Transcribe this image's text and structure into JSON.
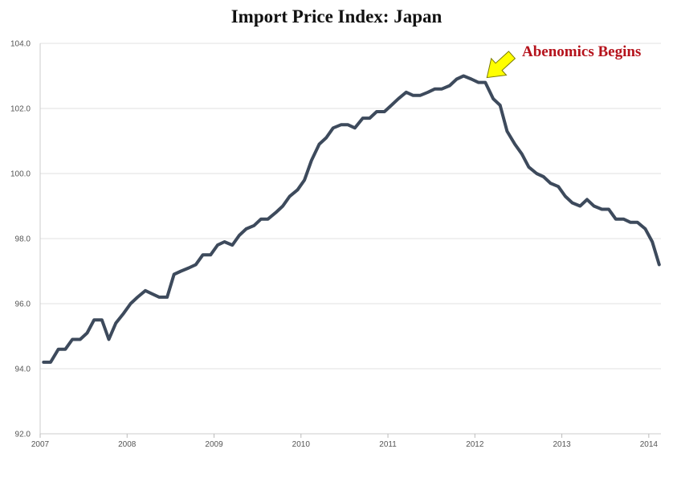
{
  "chart_data": {
    "type": "line",
    "title": "Import Price Index: Japan",
    "xlabel": "",
    "ylabel": "",
    "xlim": [
      2007.0,
      2014.14
    ],
    "ylim": [
      92.0,
      104.0
    ],
    "y_ticks": [
      92.0,
      94.0,
      96.0,
      98.0,
      100.0,
      102.0,
      104.0
    ],
    "y_tick_labels": [
      "92.0",
      "94.0",
      "96.0",
      "98.0",
      "100.0",
      "102.0",
      "104.0"
    ],
    "x_ticks": [
      2007,
      2008,
      2009,
      2010,
      2011,
      2012,
      2013,
      2014
    ],
    "x_tick_labels": [
      "2007",
      "2008",
      "2009",
      "2010",
      "2011",
      "2012",
      "2013",
      "2014"
    ],
    "grid": "horizontal",
    "line_color": "#3d4a5c",
    "series": [
      {
        "x": [
          2007.04,
          2007.12,
          2007.21,
          2007.29,
          2007.37,
          2007.46,
          2007.54,
          2007.62,
          2007.71,
          2007.79,
          2007.87,
          2007.96,
          2008.04,
          2008.12,
          2008.21,
          2008.29,
          2008.37,
          2008.46,
          2008.54,
          2008.62,
          2008.71,
          2008.79,
          2008.87,
          2008.96,
          2009.04,
          2009.12,
          2009.21,
          2009.29,
          2009.37,
          2009.46,
          2009.54,
          2009.62,
          2009.71,
          2009.79,
          2009.87,
          2009.96,
          2010.04,
          2010.12,
          2010.21,
          2010.29,
          2010.37,
          2010.46,
          2010.54,
          2010.62,
          2010.71,
          2010.79,
          2010.87,
          2010.96,
          2011.04,
          2011.12,
          2011.21,
          2011.29,
          2011.37,
          2011.46,
          2011.54,
          2011.62,
          2011.71,
          2011.79,
          2011.87,
          2011.96,
          2012.04,
          2012.12,
          2012.21,
          2012.29,
          2012.37,
          2012.46,
          2012.54,
          2012.62,
          2012.71,
          2012.79,
          2012.87,
          2012.96,
          2013.04,
          2013.12,
          2013.21,
          2013.29,
          2013.37,
          2013.46,
          2013.54,
          2013.62,
          2013.71,
          2013.79,
          2013.87,
          2013.96,
          2014.04,
          2014.12
        ],
        "y": [
          94.2,
          94.2,
          94.6,
          94.6,
          94.9,
          94.9,
          95.1,
          95.5,
          95.5,
          94.9,
          95.4,
          95.7,
          96.0,
          96.2,
          96.4,
          96.3,
          96.2,
          96.2,
          96.9,
          97.0,
          97.1,
          97.2,
          97.5,
          97.5,
          97.8,
          97.9,
          97.8,
          98.1,
          98.3,
          98.4,
          98.6,
          98.6,
          98.8,
          99.0,
          99.3,
          99.5,
          99.8,
          100.4,
          100.9,
          101.1,
          101.4,
          101.5,
          101.5,
          101.4,
          101.7,
          101.7,
          101.9,
          101.9,
          102.1,
          102.3,
          102.5,
          102.4,
          102.4,
          102.5,
          102.6,
          102.6,
          102.7,
          102.9,
          103.0,
          102.9,
          102.8,
          102.8,
          102.3,
          102.1,
          101.3,
          100.9,
          100.6,
          100.2,
          100.0,
          99.9,
          99.7,
          99.6,
          99.3,
          99.1,
          99.0,
          99.2,
          99.0,
          98.9,
          98.9,
          98.6,
          98.6,
          98.5,
          98.5,
          98.3,
          97.9,
          97.2
        ]
      }
    ],
    "annotation": {
      "text": "Abenomics Begins",
      "text_color": "#b5121b",
      "arrow_color": "#ffff00",
      "arrow_outline": "#7a7a00",
      "points_to": {
        "x": 2012.12,
        "y": 102.8
      }
    }
  }
}
